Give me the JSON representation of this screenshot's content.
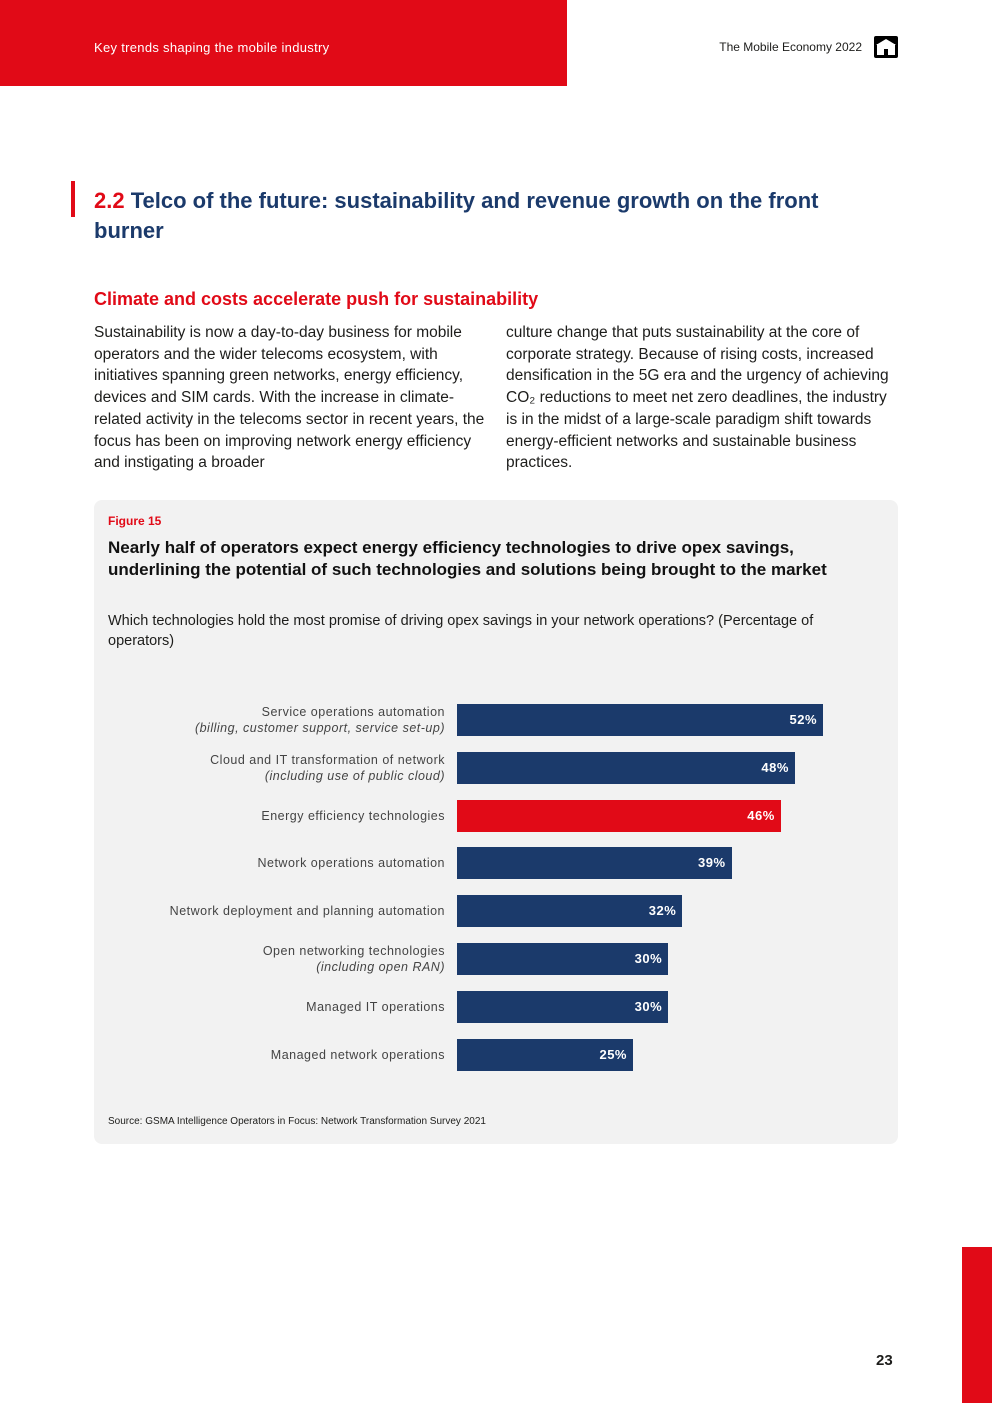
{
  "header": {
    "left_text": "Key trends shaping the mobile industry",
    "right_text": "The Mobile Economy 2022",
    "home_icon": "home-icon",
    "accent_color": "#e10a17"
  },
  "section": {
    "number": "2.2",
    "title": "Telco of the future: sustainability and revenue growth on the front burner"
  },
  "subheading": "Climate and costs accelerate push for sustainability",
  "body": {
    "left": "Sustainability is now a day-to-day business for mobile operators and the wider telecoms ecosystem, with initiatives spanning green networks, energy efficiency, devices and SIM cards. With the increase in climate-related activity in the telecoms sector in recent years, the focus has been on improving network energy efficiency and instigating a broader",
    "right": "culture change that puts sustainability at the core of corporate strategy. Because of rising costs, increased densification in the 5G era and the urgency of achieving CO₂ reductions to meet net zero deadlines, the industry is in the midst of a large-scale paradigm shift towards energy-efficient networks and sustainable business practices."
  },
  "figure": {
    "label": "Figure 15",
    "title": "Nearly half of operators expect energy efficiency technologies to drive opex savings, underlining the potential of such technologies and solutions being brought to the market",
    "question": "Which technologies hold the most promise of driving opex savings in your network operations? (Percentage of operators)",
    "source": "Source: GSMA Intelligence Operators in Focus: Network Transformation Survey 2021"
  },
  "chart_data": {
    "type": "bar",
    "orientation": "horizontal",
    "title": "Nearly half of operators expect energy efficiency technologies to drive opex savings, underlining the potential of such technologies and solutions being brought to the market",
    "xlabel": "Percentage of operators",
    "xlim": [
      0,
      60
    ],
    "bar_color": "#1b3a6b",
    "highlight_color": "#e10a17",
    "categories": [
      {
        "name": "Service operations automation",
        "note": "(billing, customer support, service set-up)",
        "value": 52,
        "display": "52%",
        "highlight": false
      },
      {
        "name": "Cloud and IT transformation of network",
        "note": "(including use of public cloud)",
        "value": 48,
        "display": "48%",
        "highlight": false
      },
      {
        "name": "Energy efficiency technologies",
        "note": "",
        "value": 46,
        "display": "46%",
        "highlight": true
      },
      {
        "name": "Network operations automation",
        "note": "",
        "value": 39,
        "display": "39%",
        "highlight": false
      },
      {
        "name": "Network deployment and planning automation",
        "note": "",
        "value": 32,
        "display": "32%",
        "highlight": false
      },
      {
        "name": "Open networking technologies",
        "note": "(including open RAN)",
        "value": 30,
        "display": "30%",
        "highlight": false
      },
      {
        "name": "Managed IT operations",
        "note": "",
        "value": 30,
        "display": "30%",
        "highlight": false
      },
      {
        "name": "Managed network operations",
        "note": "",
        "value": 25,
        "display": "25%",
        "highlight": false
      }
    ]
  },
  "page_number": "23"
}
